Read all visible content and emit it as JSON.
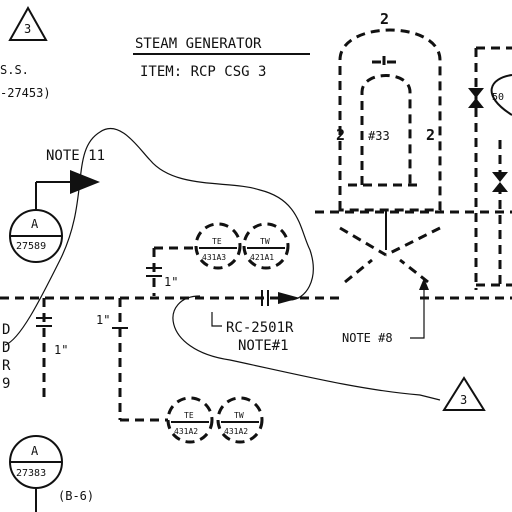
{
  "title": {
    "line1": "STEAM GENERATOR",
    "line2": "ITEM: RCP CSG 3"
  },
  "revision_marker_top": "3",
  "revision_marker_bottom": "3",
  "left_fragment": {
    "line1": "S.S.",
    "line2": "-27453)"
  },
  "notes": {
    "note_11": "NOTE  11",
    "note_8": "NOTE #8",
    "note_1": "NOTE#1"
  },
  "line_id": "RC-2501R",
  "vessel_label": "#33",
  "vessel_dim_top": "2",
  "vessel_dim_left": "2",
  "vessel_dim_right": "2",
  "instruments": {
    "a_upper": {
      "letter": "A",
      "tag": "27589"
    },
    "a_lower": {
      "letter": "A",
      "tag": "27383"
    },
    "te_upper": {
      "type": "TE",
      "tag": "431A3"
    },
    "tw_upper": {
      "type": "TW",
      "tag": "421A1"
    },
    "te_lower": {
      "type": "TE",
      "tag": "431A2"
    },
    "tw_lower": {
      "type": "TW",
      "tag": "431A2"
    }
  },
  "pipe_sizes": {
    "upper_branch": "1\"",
    "lower_branch": "1\"",
    "left_branch": "1\""
  },
  "coord_ref": "(B-6)",
  "left_edge_letters": [
    "D",
    "D",
    "R",
    "9"
  ],
  "right_partial_label": "50"
}
